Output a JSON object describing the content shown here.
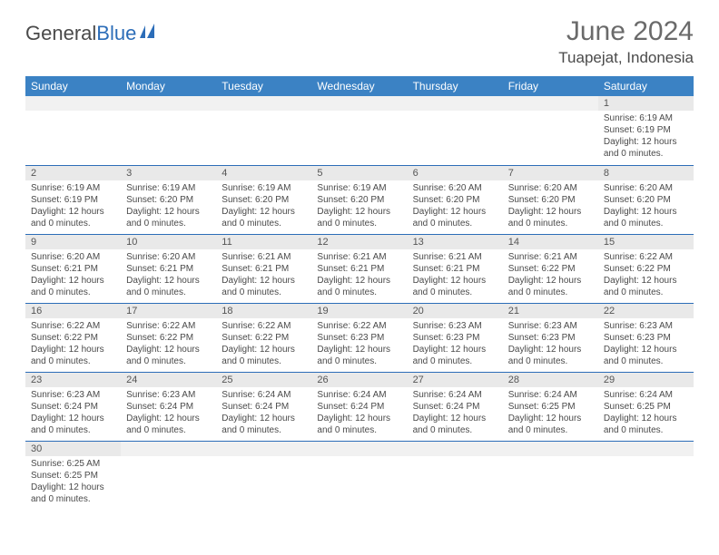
{
  "logo": {
    "text_a": "General",
    "text_b": "Blue"
  },
  "title": "June 2024",
  "location": "Tuapejat, Indonesia",
  "colors": {
    "header_bg": "#3b82c4",
    "header_text": "#ffffff",
    "border": "#2c6db8",
    "daynum_bg": "#e9e9e9",
    "text": "#4a4a4a",
    "logo_blue": "#2c6db8"
  },
  "day_names": [
    "Sunday",
    "Monday",
    "Tuesday",
    "Wednesday",
    "Thursday",
    "Friday",
    "Saturday"
  ],
  "weeks": [
    [
      {
        "day": "",
        "lines": []
      },
      {
        "day": "",
        "lines": []
      },
      {
        "day": "",
        "lines": []
      },
      {
        "day": "",
        "lines": []
      },
      {
        "day": "",
        "lines": []
      },
      {
        "day": "",
        "lines": []
      },
      {
        "day": "1",
        "lines": [
          "Sunrise: 6:19 AM",
          "Sunset: 6:19 PM",
          "Daylight: 12 hours and 0 minutes."
        ]
      }
    ],
    [
      {
        "day": "2",
        "lines": [
          "Sunrise: 6:19 AM",
          "Sunset: 6:19 PM",
          "Daylight: 12 hours and 0 minutes."
        ]
      },
      {
        "day": "3",
        "lines": [
          "Sunrise: 6:19 AM",
          "Sunset: 6:20 PM",
          "Daylight: 12 hours and 0 minutes."
        ]
      },
      {
        "day": "4",
        "lines": [
          "Sunrise: 6:19 AM",
          "Sunset: 6:20 PM",
          "Daylight: 12 hours and 0 minutes."
        ]
      },
      {
        "day": "5",
        "lines": [
          "Sunrise: 6:19 AM",
          "Sunset: 6:20 PM",
          "Daylight: 12 hours and 0 minutes."
        ]
      },
      {
        "day": "6",
        "lines": [
          "Sunrise: 6:20 AM",
          "Sunset: 6:20 PM",
          "Daylight: 12 hours and 0 minutes."
        ]
      },
      {
        "day": "7",
        "lines": [
          "Sunrise: 6:20 AM",
          "Sunset: 6:20 PM",
          "Daylight: 12 hours and 0 minutes."
        ]
      },
      {
        "day": "8",
        "lines": [
          "Sunrise: 6:20 AM",
          "Sunset: 6:20 PM",
          "Daylight: 12 hours and 0 minutes."
        ]
      }
    ],
    [
      {
        "day": "9",
        "lines": [
          "Sunrise: 6:20 AM",
          "Sunset: 6:21 PM",
          "Daylight: 12 hours and 0 minutes."
        ]
      },
      {
        "day": "10",
        "lines": [
          "Sunrise: 6:20 AM",
          "Sunset: 6:21 PM",
          "Daylight: 12 hours and 0 minutes."
        ]
      },
      {
        "day": "11",
        "lines": [
          "Sunrise: 6:21 AM",
          "Sunset: 6:21 PM",
          "Daylight: 12 hours and 0 minutes."
        ]
      },
      {
        "day": "12",
        "lines": [
          "Sunrise: 6:21 AM",
          "Sunset: 6:21 PM",
          "Daylight: 12 hours and 0 minutes."
        ]
      },
      {
        "day": "13",
        "lines": [
          "Sunrise: 6:21 AM",
          "Sunset: 6:21 PM",
          "Daylight: 12 hours and 0 minutes."
        ]
      },
      {
        "day": "14",
        "lines": [
          "Sunrise: 6:21 AM",
          "Sunset: 6:22 PM",
          "Daylight: 12 hours and 0 minutes."
        ]
      },
      {
        "day": "15",
        "lines": [
          "Sunrise: 6:22 AM",
          "Sunset: 6:22 PM",
          "Daylight: 12 hours and 0 minutes."
        ]
      }
    ],
    [
      {
        "day": "16",
        "lines": [
          "Sunrise: 6:22 AM",
          "Sunset: 6:22 PM",
          "Daylight: 12 hours and 0 minutes."
        ]
      },
      {
        "day": "17",
        "lines": [
          "Sunrise: 6:22 AM",
          "Sunset: 6:22 PM",
          "Daylight: 12 hours and 0 minutes."
        ]
      },
      {
        "day": "18",
        "lines": [
          "Sunrise: 6:22 AM",
          "Sunset: 6:22 PM",
          "Daylight: 12 hours and 0 minutes."
        ]
      },
      {
        "day": "19",
        "lines": [
          "Sunrise: 6:22 AM",
          "Sunset: 6:23 PM",
          "Daylight: 12 hours and 0 minutes."
        ]
      },
      {
        "day": "20",
        "lines": [
          "Sunrise: 6:23 AM",
          "Sunset: 6:23 PM",
          "Daylight: 12 hours and 0 minutes."
        ]
      },
      {
        "day": "21",
        "lines": [
          "Sunrise: 6:23 AM",
          "Sunset: 6:23 PM",
          "Daylight: 12 hours and 0 minutes."
        ]
      },
      {
        "day": "22",
        "lines": [
          "Sunrise: 6:23 AM",
          "Sunset: 6:23 PM",
          "Daylight: 12 hours and 0 minutes."
        ]
      }
    ],
    [
      {
        "day": "23",
        "lines": [
          "Sunrise: 6:23 AM",
          "Sunset: 6:24 PM",
          "Daylight: 12 hours and 0 minutes."
        ]
      },
      {
        "day": "24",
        "lines": [
          "Sunrise: 6:23 AM",
          "Sunset: 6:24 PM",
          "Daylight: 12 hours and 0 minutes."
        ]
      },
      {
        "day": "25",
        "lines": [
          "Sunrise: 6:24 AM",
          "Sunset: 6:24 PM",
          "Daylight: 12 hours and 0 minutes."
        ]
      },
      {
        "day": "26",
        "lines": [
          "Sunrise: 6:24 AM",
          "Sunset: 6:24 PM",
          "Daylight: 12 hours and 0 minutes."
        ]
      },
      {
        "day": "27",
        "lines": [
          "Sunrise: 6:24 AM",
          "Sunset: 6:24 PM",
          "Daylight: 12 hours and 0 minutes."
        ]
      },
      {
        "day": "28",
        "lines": [
          "Sunrise: 6:24 AM",
          "Sunset: 6:25 PM",
          "Daylight: 12 hours and 0 minutes."
        ]
      },
      {
        "day": "29",
        "lines": [
          "Sunrise: 6:24 AM",
          "Sunset: 6:25 PM",
          "Daylight: 12 hours and 0 minutes."
        ]
      }
    ],
    [
      {
        "day": "30",
        "lines": [
          "Sunrise: 6:25 AM",
          "Sunset: 6:25 PM",
          "Daylight: 12 hours and 0 minutes."
        ]
      },
      {
        "day": "",
        "lines": []
      },
      {
        "day": "",
        "lines": []
      },
      {
        "day": "",
        "lines": []
      },
      {
        "day": "",
        "lines": []
      },
      {
        "day": "",
        "lines": []
      },
      {
        "day": "",
        "lines": []
      }
    ]
  ]
}
